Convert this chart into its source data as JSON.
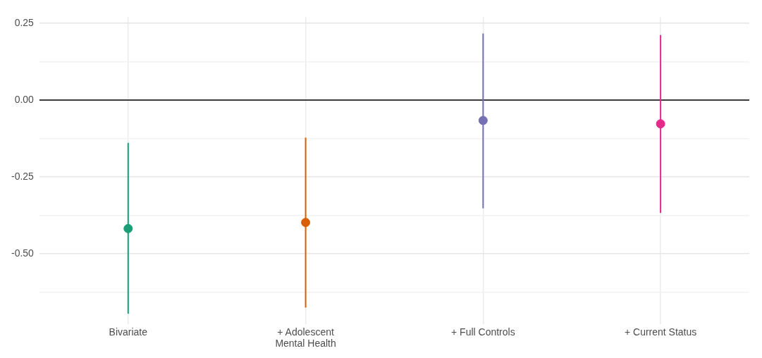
{
  "chart_data": {
    "type": "scatter",
    "categories": [
      "Bivariate",
      "+ Adolescent\nMental Health",
      "+ Full Controls",
      "+ Current Status"
    ],
    "values": [
      -0.418,
      -0.398,
      -0.066,
      -0.077
    ],
    "colors": [
      "#1b9e77",
      "#d95f02",
      "#7570b3",
      "#e7298a"
    ],
    "errors": [
      [
        -0.695,
        -0.139
      ],
      [
        -0.675,
        -0.122
      ],
      [
        -0.352,
        0.217
      ],
      [
        -0.367,
        0.212
      ]
    ],
    "ylim": [
      -0.73,
      0.27
    ],
    "yticks": [
      {
        "value": -0.625,
        "label": null
      },
      {
        "value": -0.5,
        "label": "-0.50"
      },
      {
        "value": -0.375,
        "label": null
      },
      -0.25,
      {
        "value": -0.125,
        "label": null
      },
      {
        "value": 0,
        "label": "0.00"
      },
      {
        "value": 0.125,
        "label": null
      },
      0.25
    ],
    "ref_lines": [
      {
        "axis": "y",
        "value": 0,
        "color": "#000000"
      }
    ],
    "grid": true,
    "marker": "circle"
  }
}
